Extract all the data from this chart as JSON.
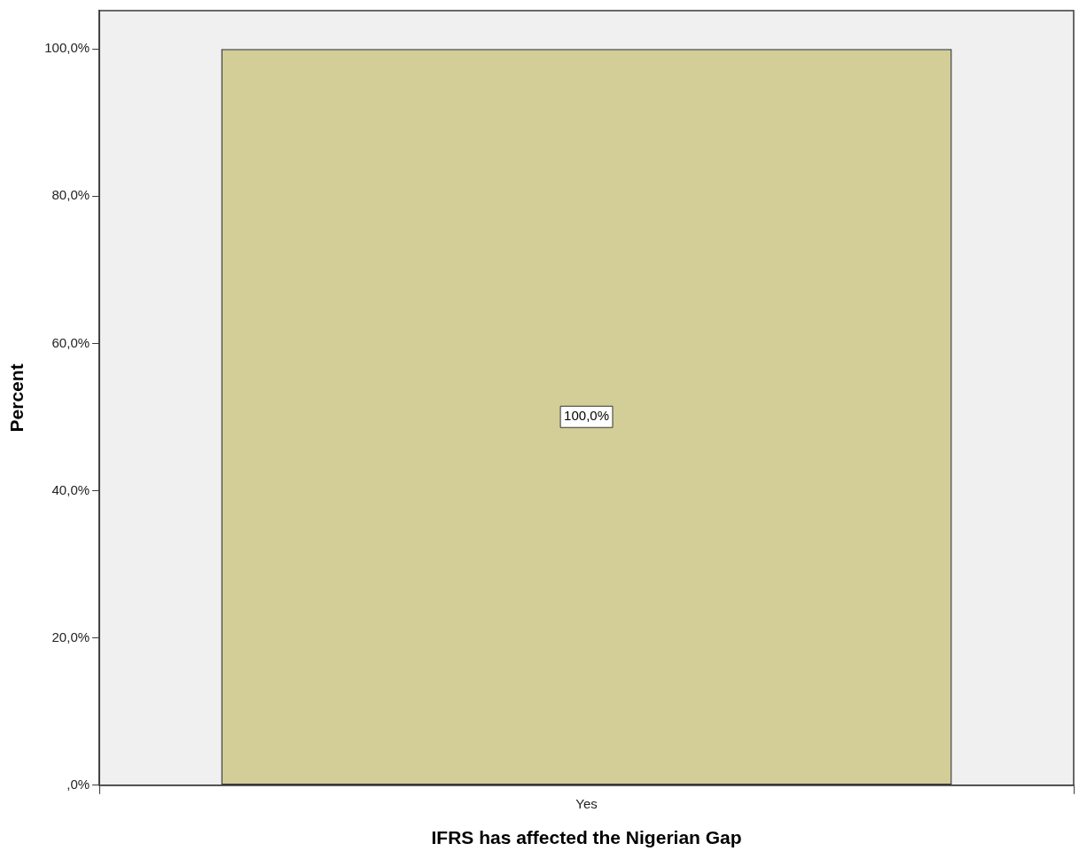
{
  "chart_data": {
    "type": "bar",
    "xlabel": "IFRS has affected the Nigerian Gap",
    "ylabel": "Percent",
    "categories": [
      "Yes"
    ],
    "values": [
      100
    ],
    "color": "#d3cd98",
    "value_labels": [
      "100,0%"
    ],
    "ylim": [
      0,
      105.2
    ],
    "yticks": [
      {
        "value": 0,
        "label": ",0%"
      },
      {
        "value": 20,
        "label": "20,0%"
      },
      {
        "value": 40,
        "label": "40,0%"
      },
      {
        "value": 60,
        "label": "60,0%"
      },
      {
        "value": 80,
        "label": "80,0%"
      },
      {
        "value": 100,
        "label": "100,0%"
      }
    ],
    "grid": false,
    "legend": false
  }
}
